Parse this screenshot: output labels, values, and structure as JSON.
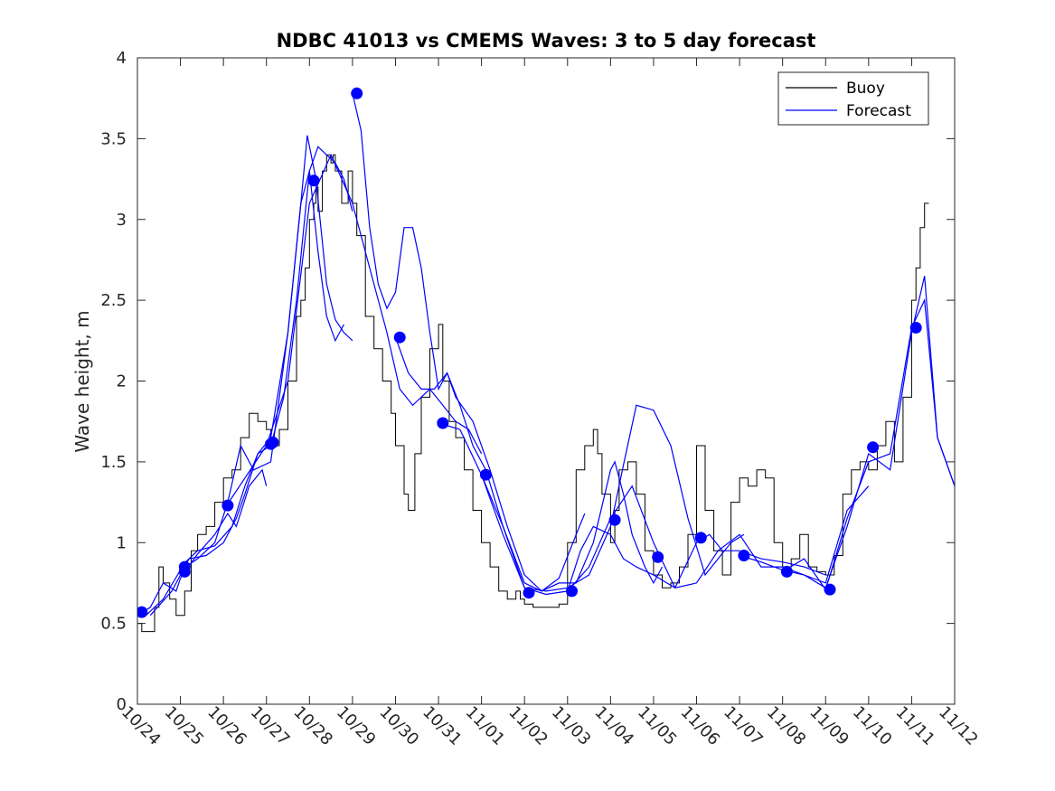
{
  "chart_data": {
    "type": "line",
    "title": "NDBC 41013 vs CMEMS Waves: 3 to 5 day forecast",
    "xlabel": "",
    "ylabel": "Wave height, m",
    "xlim": [
      0,
      19
    ],
    "ylim": [
      0,
      4
    ],
    "grid": false,
    "legend_position": "top-right",
    "xticks": [
      0,
      1,
      2,
      3,
      4,
      5,
      6,
      7,
      8,
      9,
      10,
      11,
      12,
      13,
      14,
      15,
      16,
      17,
      18,
      19
    ],
    "xtick_labels": [
      "10/24",
      "10/25",
      "10/26",
      "10/27",
      "10/28",
      "10/29",
      "10/30",
      "10/31",
      "11/01",
      "11/02",
      "11/03",
      "11/04",
      "11/05",
      "11/06",
      "11/07",
      "11/08",
      "11/09",
      "11/10",
      "11/11",
      "11/12"
    ],
    "yticks": [
      0,
      0.5,
      1,
      1.5,
      2,
      2.5,
      3,
      3.5,
      4
    ],
    "ytick_labels": [
      "0",
      "0.5",
      "1",
      "1.5",
      "2",
      "2.5",
      "3",
      "3.5",
      "4"
    ],
    "colors": {
      "buoy": "#000000",
      "forecast": "#0000ff",
      "marker": "#0000ff"
    },
    "legend": [
      {
        "name": "Buoy",
        "color": "#000000"
      },
      {
        "name": "Forecast",
        "color": "#0000ff"
      }
    ],
    "buoy": {
      "name": "Buoy",
      "x": [
        0,
        0.1,
        0.25,
        0.4,
        0.5,
        0.6,
        0.75,
        0.9,
        1.0,
        1.1,
        1.25,
        1.4,
        1.6,
        1.8,
        2.0,
        2.2,
        2.4,
        2.6,
        2.8,
        3.0,
        3.1,
        3.3,
        3.5,
        3.7,
        3.8,
        3.9,
        4.0,
        4.1,
        4.15,
        4.2,
        4.3,
        4.4,
        4.5,
        4.55,
        4.6,
        4.75,
        4.9,
        5.0,
        5.1,
        5.3,
        5.5,
        5.7,
        5.9,
        6.0,
        6.2,
        6.3,
        6.45,
        6.6,
        6.8,
        7.0,
        7.1,
        7.25,
        7.4,
        7.6,
        7.8,
        8.0,
        8.2,
        8.4,
        8.6,
        8.8,
        8.9,
        9.0,
        9.2,
        9.4,
        9.6,
        9.8,
        10.0,
        10.2,
        10.4,
        10.6,
        10.7,
        10.8,
        11.0,
        11.1,
        11.2,
        11.4,
        11.6,
        11.8,
        12.0,
        12.2,
        12.4,
        12.6,
        12.8,
        13.0,
        13.1,
        13.2,
        13.4,
        13.6,
        13.8,
        14.0,
        14.2,
        14.4,
        14.6,
        14.8,
        15.0,
        15.2,
        15.4,
        15.6,
        15.8,
        16.0,
        16.2,
        16.4,
        16.6,
        16.8,
        17.0,
        17.2,
        17.4,
        17.6,
        17.8,
        18.0,
        18.1,
        18.2,
        18.3,
        18.4
      ],
      "values": [
        0.5,
        0.45,
        0.45,
        0.6,
        0.85,
        0.75,
        0.65,
        0.55,
        0.55,
        0.7,
        0.95,
        1.05,
        1.1,
        1.25,
        1.4,
        1.45,
        1.65,
        1.8,
        1.75,
        1.7,
        1.6,
        1.7,
        2.0,
        2.4,
        2.5,
        2.7,
        3.0,
        3.1,
        3.2,
        3.05,
        3.3,
        3.4,
        3.35,
        3.4,
        3.3,
        3.1,
        3.3,
        3.1,
        2.9,
        2.4,
        2.2,
        2.0,
        1.8,
        1.6,
        1.3,
        1.2,
        1.55,
        1.9,
        2.2,
        2.35,
        2.0,
        1.75,
        1.65,
        1.45,
        1.2,
        1.0,
        0.85,
        0.7,
        0.65,
        0.7,
        0.65,
        0.62,
        0.6,
        0.6,
        0.6,
        0.62,
        1.0,
        1.45,
        1.6,
        1.7,
        1.55,
        1.3,
        1.0,
        1.2,
        1.45,
        1.5,
        1.3,
        0.95,
        0.8,
        0.72,
        0.75,
        0.85,
        1.05,
        1.6,
        1.6,
        1.2,
        0.95,
        0.8,
        1.25,
        1.4,
        1.35,
        1.45,
        1.4,
        1.0,
        0.85,
        0.9,
        1.05,
        0.85,
        0.82,
        0.8,
        0.92,
        1.3,
        1.45,
        1.5,
        1.45,
        1.6,
        1.75,
        1.5,
        1.9,
        2.5,
        2.7,
        2.95,
        3.1,
        3.1
      ]
    },
    "forecast_series": [
      {
        "name": "Forecast run 1",
        "x": [
          0,
          0.3,
          0.6,
          0.9,
          1.0,
          1.4,
          1.8,
          2.1,
          2.3,
          2.6,
          2.9,
          3.0
        ],
        "values": [
          0.55,
          0.6,
          0.75,
          0.7,
          0.78,
          0.93,
          1.05,
          1.18,
          1.1,
          1.35,
          1.45,
          1.35
        ]
      },
      {
        "name": "Forecast run 2",
        "x": [
          0.2,
          0.6,
          1.0,
          1.4,
          1.8,
          2.1,
          2.4,
          2.7,
          3.1,
          3.5,
          3.8,
          4.0,
          4.2,
          4.4,
          4.6,
          4.8
        ],
        "values": [
          0.55,
          0.65,
          0.83,
          0.9,
          1.0,
          1.25,
          1.6,
          1.45,
          1.5,
          2.3,
          3.1,
          3.3,
          2.8,
          2.4,
          2.25,
          2.35
        ]
      },
      {
        "name": "Forecast run 3",
        "x": [
          0.3,
          0.8,
          1.2,
          1.6,
          2.0,
          2.3,
          2.5,
          2.8,
          3.1,
          3.5,
          3.8,
          3.95,
          4.15,
          4.4,
          4.6,
          4.8,
          5.0
        ],
        "values": [
          0.55,
          0.7,
          0.9,
          0.92,
          1.0,
          1.15,
          1.3,
          1.55,
          1.65,
          2.3,
          3.1,
          3.52,
          3.25,
          2.6,
          2.38,
          2.3,
          2.25
        ]
      },
      {
        "name": "Forecast run 4",
        "x": [
          1.0,
          1.4,
          1.8,
          2.2,
          2.5,
          2.8,
          3.1,
          3.4,
          3.7,
          4.0,
          4.2,
          4.4,
          4.6,
          4.8,
          5.0
        ],
        "values": [
          0.85,
          0.95,
          0.98,
          1.1,
          1.35,
          1.55,
          1.6,
          1.9,
          2.5,
          3.3,
          3.45,
          3.4,
          3.35,
          3.25,
          3.05
        ]
      },
      {
        "name": "Forecast run 5",
        "x": [
          2.0,
          2.5,
          3.0,
          3.5,
          4.0,
          4.5,
          5.0,
          5.4,
          5.8,
          6.1,
          6.4,
          6.8,
          7.1,
          7.4,
          7.7,
          8.0
        ],
        "values": [
          1.2,
          1.4,
          1.6,
          2.0,
          3.1,
          3.4,
          3.1,
          2.7,
          2.3,
          1.95,
          1.85,
          1.95,
          1.85,
          1.75,
          1.7,
          1.55
        ]
      },
      {
        "name": "Forecast run 6",
        "x": [
          5.0,
          5.2,
          5.4,
          5.6,
          5.8,
          6.0,
          6.2,
          6.4,
          6.6,
          6.8,
          7.0,
          7.2,
          7.4,
          7.8,
          8.2,
          8.6,
          9.0,
          9.4,
          9.8,
          10.2,
          10.4
        ],
        "values": [
          3.78,
          3.55,
          2.95,
          2.6,
          2.45,
          2.55,
          2.95,
          2.95,
          2.7,
          2.3,
          1.95,
          2.05,
          1.9,
          1.75,
          1.45,
          1.1,
          0.8,
          0.7,
          0.78,
          1.05,
          1.18
        ]
      },
      {
        "name": "Forecast run 7",
        "x": [
          6.0,
          6.3,
          6.6,
          6.9,
          7.2,
          7.5,
          7.8,
          8.1,
          8.5,
          9.0,
          9.4,
          9.8,
          10.2,
          10.6,
          11.0,
          11.1,
          11.3,
          11.5,
          11.8,
          12.0,
          12.2
        ],
        "values": [
          2.27,
          2.05,
          1.95,
          1.95,
          2.05,
          1.85,
          1.6,
          1.45,
          1.1,
          0.75,
          0.7,
          0.75,
          0.75,
          1.0,
          1.45,
          1.5,
          1.3,
          1.05,
          0.85,
          0.75,
          0.85
        ]
      },
      {
        "name": "Forecast run 8",
        "x": [
          7.0,
          7.5,
          8.0,
          8.5,
          9.0,
          9.5,
          10.0,
          10.5,
          11.0,
          11.3,
          11.6,
          12.0,
          12.4,
          12.8,
          13.2,
          13.5,
          13.8,
          14.1
        ],
        "values": [
          1.74,
          1.7,
          1.42,
          1.1,
          0.72,
          0.7,
          0.72,
          0.8,
          1.1,
          1.48,
          1.85,
          1.82,
          1.6,
          1.15,
          0.8,
          0.9,
          1.0,
          1.05
        ]
      },
      {
        "name": "Forecast run 9",
        "x": [
          8.0,
          8.5,
          9.0,
          9.5,
          10.0,
          10.3,
          10.6,
          11.0,
          11.3,
          11.6,
          12.0,
          12.5,
          13.0,
          13.3,
          13.6,
          14.0,
          14.5,
          15.0,
          15.5,
          16.0
        ],
        "values": [
          1.42,
          1.05,
          0.72,
          0.68,
          0.7,
          0.95,
          1.1,
          1.05,
          0.9,
          0.85,
          0.8,
          0.72,
          1.0,
          1.05,
          0.95,
          0.95,
          0.9,
          0.88,
          0.85,
          0.8
        ]
      },
      {
        "name": "Forecast run 10",
        "x": [
          10.0,
          10.5,
          11.0,
          11.5,
          12.0,
          12.5,
          13.0,
          13.5,
          14.0,
          14.5,
          15.0,
          15.5,
          16.0,
          16.5,
          17.0
        ],
        "values": [
          0.7,
          0.85,
          1.15,
          1.35,
          1.0,
          0.72,
          0.75,
          0.95,
          1.05,
          0.85,
          0.85,
          0.8,
          0.75,
          1.2,
          1.35
        ]
      },
      {
        "name": "Forecast run 11",
        "x": [
          14.0,
          14.5,
          15.0,
          15.5,
          16.0,
          16.5,
          17.0,
          17.5,
          18.0,
          18.3,
          18.6,
          19.0
        ],
        "values": [
          0.92,
          0.88,
          0.83,
          0.8,
          0.72,
          1.1,
          1.55,
          1.45,
          2.3,
          2.65,
          1.65,
          1.35
        ]
      },
      {
        "name": "Forecast run 12",
        "x": [
          15.0,
          15.5,
          16.0,
          16.5,
          17.0,
          17.5,
          18.0,
          18.3,
          18.6,
          19.0
        ],
        "values": [
          0.82,
          0.9,
          0.71,
          1.15,
          1.5,
          1.55,
          2.33,
          2.5,
          1.65,
          1.35
        ]
      }
    ],
    "markers": {
      "name": "Forecast initial values",
      "x": [
        0.1,
        1.1,
        1.1,
        2.1,
        3.1,
        3.15,
        4.1,
        5.1,
        6.1,
        7.1,
        8.1,
        9.1,
        10.1,
        11.1,
        12.1,
        13.1,
        14.1,
        15.1,
        16.1,
        17.1,
        18.1
      ],
      "values": [
        0.57,
        0.82,
        0.85,
        1.23,
        1.61,
        1.62,
        3.24,
        3.78,
        2.27,
        1.74,
        1.42,
        0.69,
        0.7,
        1.14,
        0.91,
        1.03,
        0.92,
        0.82,
        0.71,
        1.59,
        2.33
      ]
    }
  }
}
